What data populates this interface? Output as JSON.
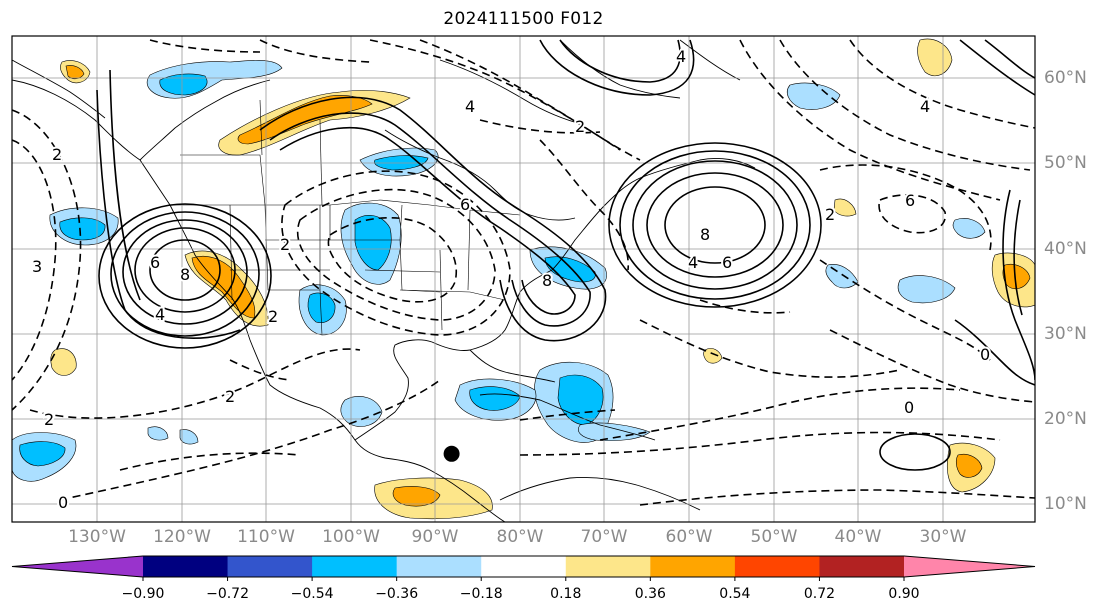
{
  "title": "2024111500 F012",
  "map": {
    "lon_range": [
      -137,
      -16
    ],
    "lat_range": [
      8,
      65
    ],
    "lon_labels": [
      "130°W",
      "120°W",
      "110°W",
      "100°W",
      "90°W",
      "80°W",
      "70°W",
      "60°W",
      "50°W",
      "40°W",
      "30°W"
    ],
    "lat_labels": [
      "10°N",
      "20°N",
      "30°N",
      "40°N",
      "50°N",
      "60°N"
    ],
    "lon_ticks": [
      -130,
      -120,
      -110,
      -100,
      -90,
      -80,
      -70,
      -60,
      -50,
      -40,
      -30
    ],
    "lat_ticks": [
      10,
      20,
      30,
      40,
      50,
      60
    ],
    "contour_labels": [
      "2",
      "4",
      "6",
      "8",
      "0",
      "2",
      "4",
      "6",
      "8",
      "4",
      "6",
      "8",
      "2",
      "0",
      "2",
      "2",
      "0",
      "6",
      "4",
      "4",
      "3",
      "2",
      "2"
    ],
    "marker": {
      "name": "storm-center",
      "lon": -85.0,
      "lat": 16.0
    }
  },
  "colorbar": {
    "colors": [
      "#9933cc",
      "#000080",
      "#3355cc",
      "#00bfff",
      "#abdfff",
      "#ffffff",
      "#fde68a",
      "#ffa500",
      "#ff4500",
      "#b22222",
      "#ff85aa"
    ],
    "labels": [
      "−0.90",
      "−0.72",
      "−0.54",
      "−0.36",
      "−0.18",
      "0.18",
      "0.36",
      "0.54",
      "0.72",
      "0.90"
    ]
  }
}
